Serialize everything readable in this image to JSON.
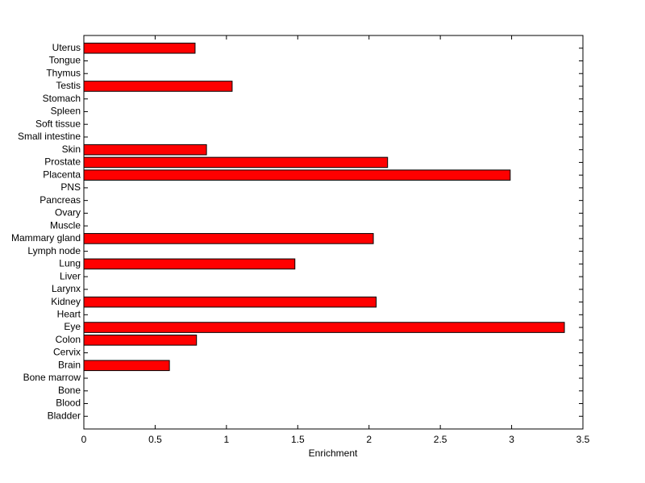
{
  "chart_data": {
    "type": "barh",
    "xlabel": "Enrichment",
    "categories": [
      "Bladder",
      "Blood",
      "Bone",
      "Bone marrow",
      "Brain",
      "Cervix",
      "Colon",
      "Eye",
      "Heart",
      "Kidney",
      "Larynx",
      "Liver",
      "Lung",
      "Lymph node",
      "Mammary gland",
      "Muscle",
      "Ovary",
      "Pancreas",
      "PNS",
      "Placenta",
      "Prostate",
      "Skin",
      "Small intestine",
      "Soft tissue",
      "Spleen",
      "Stomach",
      "Testis",
      "Thymus",
      "Tongue",
      "Uterus"
    ],
    "values": [
      0,
      0,
      0,
      0,
      0.6,
      0,
      0.79,
      3.37,
      0,
      2.05,
      0,
      0,
      1.48,
      0,
      2.03,
      0,
      0,
      0,
      0,
      2.99,
      2.13,
      0.86,
      0,
      0,
      0,
      0,
      1.04,
      0,
      0,
      0.78
    ],
    "color": "#ff0000",
    "xlim": [
      0,
      3.5
    ],
    "xticks": [
      0,
      0.5,
      1,
      1.5,
      2,
      2.5,
      3,
      3.5
    ]
  }
}
